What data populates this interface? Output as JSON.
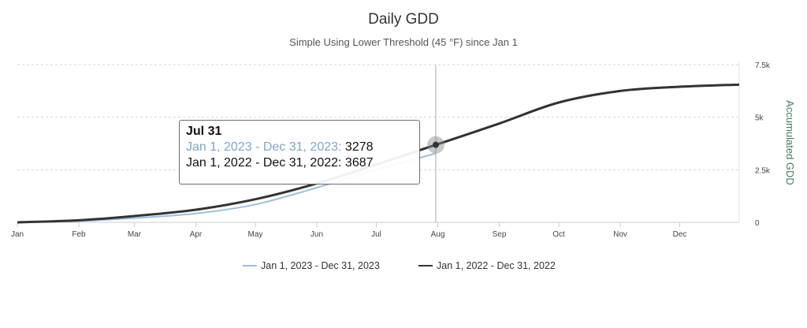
{
  "chart_data": {
    "type": "line",
    "title": "Daily GDD",
    "subtitle": "Simple Using Lower Threshold (45 °F) since Jan 1",
    "ylabel": "Accumulated GDD",
    "xlabel": "",
    "ylim": [
      0,
      7500
    ],
    "y_ticks": [
      {
        "value": 0,
        "label": "0"
      },
      {
        "value": 2500,
        "label": "2.5k"
      },
      {
        "value": 5000,
        "label": "5k"
      },
      {
        "value": 7500,
        "label": "7.5k"
      }
    ],
    "x_ticks": [
      {
        "day": 1,
        "label": "Jan"
      },
      {
        "day": 32,
        "label": "Feb"
      },
      {
        "day": 60,
        "label": "Mar"
      },
      {
        "day": 91,
        "label": "Apr"
      },
      {
        "day": 121,
        "label": "May"
      },
      {
        "day": 152,
        "label": "Jun"
      },
      {
        "day": 182,
        "label": "Jul"
      },
      {
        "day": 213,
        "label": "Aug"
      },
      {
        "day": 244,
        "label": "Sep"
      },
      {
        "day": 274,
        "label": "Oct"
      },
      {
        "day": 305,
        "label": "Nov"
      },
      {
        "day": 335,
        "label": "Dec"
      }
    ],
    "grid": "horizontal-dashed",
    "legend_position": "bottom-center",
    "series": [
      {
        "name": "Jan 1, 2023 - Dec 31, 2023",
        "color": "#9dbfe0",
        "x": [
          "Jan 1",
          "Feb 1",
          "Mar 1",
          "Apr 1",
          "May 1",
          "Jun 1",
          "Jul 1",
          "Jul 31"
        ],
        "x_day": [
          1,
          32,
          60,
          91,
          121,
          152,
          182,
          212
        ],
        "y": [
          0,
          60,
          200,
          420,
          850,
          1650,
          2500,
          3278
        ]
      },
      {
        "name": "Jan 1, 2022 - Dec 31, 2022",
        "color": "#333333",
        "x": [
          "Jan 1",
          "Feb 1",
          "Mar 1",
          "Apr 1",
          "May 1",
          "Jun 1",
          "Jul 1",
          "Jul 31",
          "Aug 31",
          "Sep 30",
          "Oct 31",
          "Nov 30",
          "Dec 31"
        ],
        "x_day": [
          1,
          32,
          60,
          91,
          121,
          152,
          182,
          212,
          244,
          274,
          305,
          335,
          365
        ],
        "y": [
          0,
          100,
          300,
          600,
          1100,
          1850,
          2750,
          3687,
          4700,
          5700,
          6250,
          6450,
          6550
        ]
      }
    ],
    "crosshair": {
      "day": 212
    },
    "tooltip": {
      "header": "Jul 31",
      "rows": [
        {
          "name": "Jan 1, 2023 - Dec 31, 2023",
          "value": "3278"
        },
        {
          "name": "Jan 1, 2022 - Dec 31, 2022",
          "value": "3687"
        }
      ]
    }
  }
}
